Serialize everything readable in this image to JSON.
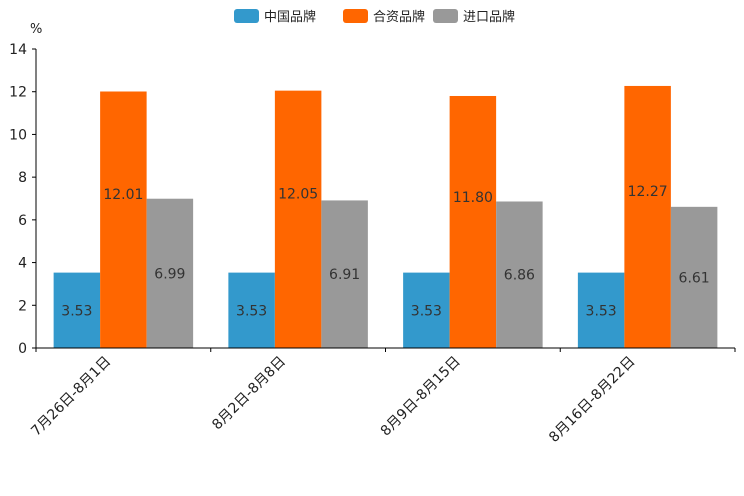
{
  "chart_data": {
    "type": "bar",
    "unit": "%",
    "title": "",
    "xlabel": "",
    "ylabel": "%",
    "ylim": [
      0,
      14
    ],
    "yticks": [
      0,
      2,
      4,
      6,
      8,
      10,
      12,
      14
    ],
    "grid": false,
    "legend_position": "top-center",
    "categories": [
      "7月26日-8月1日",
      "8月2日-8月8日",
      "8月9日-8月15日",
      "8月16日-8月22日"
    ],
    "series": [
      {
        "name": "中国品牌",
        "color": "#3399cc",
        "values": [
          3.53,
          3.53,
          3.53,
          3.53
        ],
        "labels": [
          "3.53",
          "3.53",
          "3.53",
          "3.53"
        ]
      },
      {
        "name": "合资品牌",
        "color": "#ff6600",
        "values": [
          12.01,
          12.05,
          11.8,
          12.27
        ],
        "labels": [
          "12.01",
          "12.05",
          "11.80",
          "12.27"
        ]
      },
      {
        "name": "进口品牌",
        "color": "#999999",
        "values": [
          6.99,
          6.91,
          6.86,
          6.61
        ],
        "labels": [
          "6.99",
          "6.91",
          "6.86",
          "6.61"
        ]
      }
    ]
  }
}
